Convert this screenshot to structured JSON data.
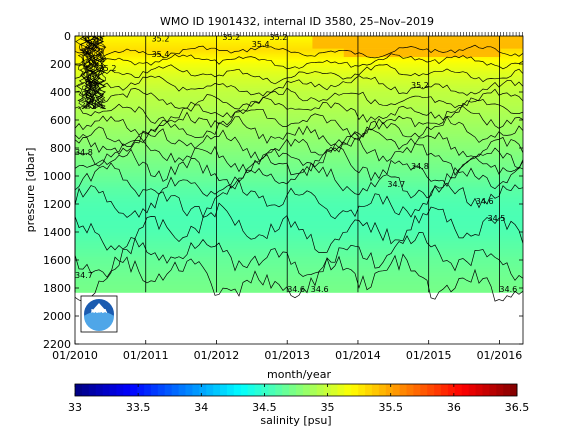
{
  "chart_data": {
    "type": "heatmap",
    "title": "WMO ID 1901432, internal ID 3580, 25–Nov–2019",
    "xlabel": "month/year",
    "ylabel": "pressure [dbar]",
    "x_ticks": [
      "01/2010",
      "01/2011",
      "01/2012",
      "01/2013",
      "01/2014",
      "01/2015",
      "01/2016"
    ],
    "y_ticks": [
      0,
      200,
      400,
      600,
      800,
      1000,
      1200,
      1400,
      1600,
      1800,
      2000,
      2200
    ],
    "ylim": [
      2200,
      0
    ],
    "xlim": [
      "2010-01",
      "2016-05"
    ],
    "max_depth_sampled": 1830,
    "colorbar": {
      "label": "salinity [psu]",
      "ticks": [
        33,
        33.5,
        34,
        34.5,
        35,
        35.5,
        36,
        36.5
      ],
      "range": [
        33,
        36.5
      ],
      "colormap": "jet"
    },
    "salinity_profile": [
      {
        "pressure": 0,
        "salinity": 35.2
      },
      {
        "pressure": 100,
        "salinity": 35.3
      },
      {
        "pressure": 200,
        "salinity": 35.15
      },
      {
        "pressure": 300,
        "salinity": 35.05
      },
      {
        "pressure": 400,
        "salinity": 34.97
      },
      {
        "pressure": 500,
        "salinity": 34.93
      },
      {
        "pressure": 600,
        "salinity": 34.88
      },
      {
        "pressure": 700,
        "salinity": 34.83
      },
      {
        "pressure": 800,
        "salinity": 34.78
      },
      {
        "pressure": 900,
        "salinity": 34.73
      },
      {
        "pressure": 1000,
        "salinity": 34.68
      },
      {
        "pressure": 1100,
        "salinity": 34.62
      },
      {
        "pressure": 1200,
        "salinity": 34.58
      },
      {
        "pressure": 1300,
        "salinity": 34.57
      },
      {
        "pressure": 1400,
        "salinity": 34.58
      },
      {
        "pressure": 1500,
        "salinity": 34.62
      },
      {
        "pressure": 1600,
        "salinity": 34.66
      },
      {
        "pressure": 1700,
        "salinity": 34.69
      },
      {
        "pressure": 1830,
        "salinity": 34.72
      }
    ],
    "contour_pressures": [
      110,
      180,
      270,
      360,
      450,
      530,
      610,
      690,
      770,
      850,
      940,
      1040,
      1180,
      1380,
      1580,
      1740
    ],
    "contour_labels": [
      {
        "text": "35.2",
        "date": "2011-02",
        "pressure": 40
      },
      {
        "text": "35.2",
        "date": "2012-02",
        "pressure": 30
      },
      {
        "text": "35.4",
        "date": "2012-07",
        "pressure": 80
      },
      {
        "text": "35.4",
        "date": "2011-02",
        "pressure": 150
      },
      {
        "text": "35.2",
        "date": "2010-05",
        "pressure": 250
      },
      {
        "text": "35.2",
        "date": "2012-10",
        "pressure": 30
      },
      {
        "text": "35.2",
        "date": "2014-10",
        "pressure": 370
      },
      {
        "text": "34.8",
        "date": "2010-01",
        "pressure": 850
      },
      {
        "text": "34.8",
        "date": "2014-10",
        "pressure": 950
      },
      {
        "text": "34.7",
        "date": "2014-06",
        "pressure": 1080
      },
      {
        "text": "34.6",
        "date": "2015-09",
        "pressure": 1200
      },
      {
        "text": "34.5",
        "date": "2015-11",
        "pressure": 1320
      },
      {
        "text": "34.7",
        "date": "2010-01",
        "pressure": 1730
      },
      {
        "text": "34.6",
        "date": "2013-01",
        "pressure": 1830
      },
      {
        "text": "34.6",
        "date": "2013-05",
        "pressure": 1830
      },
      {
        "text": "34.6",
        "date": "2016-01",
        "pressure": 1830
      }
    ]
  },
  "logo": {
    "text": "NOAA"
  }
}
